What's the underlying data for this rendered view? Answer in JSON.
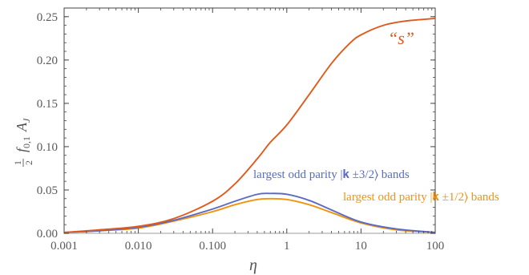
{
  "chart_data": {
    "type": "line",
    "x_scale": "log",
    "xlim": [
      0.001,
      100
    ],
    "ylim": [
      0,
      0.26
    ],
    "xlabel": "η",
    "ylabel": {
      "frac_num": "1",
      "frac_den": "2",
      "f": "f",
      "f_sub": "0,1",
      "A": "A",
      "A_sub": "J"
    },
    "x_ticks": [
      {
        "value": 0.001,
        "label": "0.001"
      },
      {
        "value": 0.01,
        "label": "0.010"
      },
      {
        "value": 0.1,
        "label": "0.100"
      },
      {
        "value": 1,
        "label": "1"
      },
      {
        "value": 10,
        "label": "10"
      },
      {
        "value": 100,
        "label": "100"
      }
    ],
    "y_ticks": [
      {
        "value": 0,
        "label": "0.00"
      },
      {
        "value": 0.05,
        "label": "0.05"
      },
      {
        "value": 0.1,
        "label": "0.10"
      },
      {
        "value": 0.15,
        "label": "0.15"
      },
      {
        "value": 0.2,
        "label": "0.20"
      },
      {
        "value": 0.25,
        "label": "0.25"
      }
    ],
    "grid": false,
    "series": [
      {
        "label": "“s”",
        "color": "#e05a1c",
        "x": [
          0.001,
          0.003,
          0.01,
          0.03,
          0.1,
          0.2,
          0.4,
          0.6,
          1,
          2,
          4,
          7,
          10,
          20,
          40,
          100
        ],
        "y": [
          0.001,
          0.004,
          0.008,
          0.017,
          0.037,
          0.057,
          0.086,
          0.105,
          0.125,
          0.16,
          0.196,
          0.219,
          0.229,
          0.24,
          0.245,
          0.248
        ]
      },
      {
        "label": "largest odd parity |𝐤 ±3/2⟩ bands",
        "color": "#5b6bc4",
        "x": [
          0.001,
          0.003,
          0.01,
          0.03,
          0.1,
          0.2,
          0.4,
          0.6,
          1,
          2,
          4,
          10,
          30,
          100
        ],
        "y": [
          0.001,
          0.003,
          0.007,
          0.015,
          0.028,
          0.037,
          0.045,
          0.046,
          0.045,
          0.038,
          0.027,
          0.013,
          0.005,
          0.001
        ]
      },
      {
        "label": "largest odd parity |𝐤 ±1/2⟩ bands",
        "color": "#f2930f",
        "x": [
          0.001,
          0.003,
          0.01,
          0.03,
          0.1,
          0.2,
          0.4,
          0.6,
          1,
          2,
          4,
          10,
          30,
          100
        ],
        "y": [
          0.001,
          0.003,
          0.006,
          0.014,
          0.025,
          0.033,
          0.039,
          0.04,
          0.039,
          0.033,
          0.024,
          0.012,
          0.004,
          0.001
        ]
      },
      {
        "label": "",
        "color": "#bdbdbd",
        "x": [
          0.001,
          100
        ],
        "y": [
          0,
          0
        ]
      }
    ]
  }
}
